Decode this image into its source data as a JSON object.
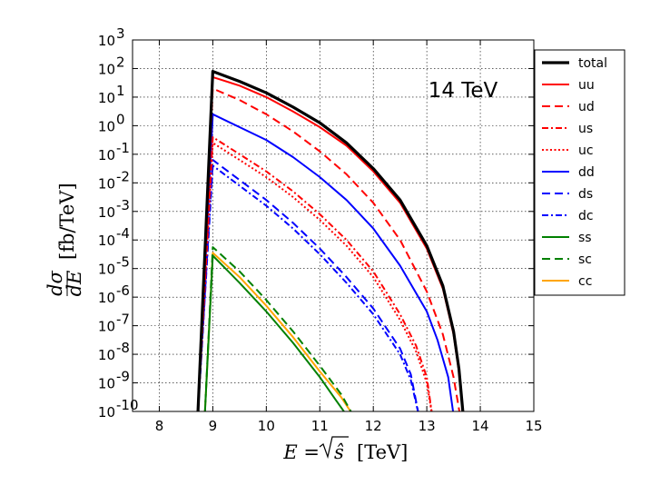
{
  "chart_data": {
    "type": "line",
    "title": "",
    "annotation": "14 TeV",
    "xlabel": {
      "prefix": "E = ",
      "sqrt_arg": "ŝ",
      "unit": "[TeV]"
    },
    "ylabel": {
      "frac_num": "dσ",
      "frac_den": "dE",
      "unit": "[fb/TeV]"
    },
    "xlim": [
      7.5,
      15
    ],
    "ylim_log10": [
      -10,
      3
    ],
    "xticks": [
      8,
      9,
      10,
      11,
      12,
      13,
      14,
      15
    ],
    "yticks_log10": [
      3,
      2,
      1,
      0,
      -1,
      -2,
      -3,
      -4,
      -5,
      -6,
      -7,
      -8,
      -9,
      -10
    ],
    "grid": true,
    "legend_position": "outside-right-top",
    "series": [
      {
        "name": "total",
        "color": "#000000",
        "dash": "solid",
        "width": 3.2,
        "x": [
          8.72,
          9.0,
          9.5,
          10.0,
          10.5,
          11.0,
          11.5,
          12.0,
          12.5,
          13.0,
          13.3,
          13.5,
          13.6,
          13.68
        ],
        "log10y": [
          -10,
          1.9,
          1.55,
          1.15,
          0.65,
          0.1,
          -0.6,
          -1.5,
          -2.6,
          -4.2,
          -5.6,
          -7.2,
          -8.5,
          -10
        ]
      },
      {
        "name": "uu",
        "color": "#ff0000",
        "dash": "solid",
        "width": 2,
        "x": [
          8.72,
          9.0,
          9.5,
          10.0,
          10.5,
          11.0,
          11.5,
          12.0,
          12.5,
          13.0,
          13.3,
          13.5,
          13.6,
          13.68
        ],
        "log10y": [
          -10,
          1.7,
          1.4,
          1.0,
          0.5,
          -0.05,
          -0.7,
          -1.6,
          -2.7,
          -4.3,
          -5.7,
          -7.3,
          -8.6,
          -10
        ]
      },
      {
        "name": "ud",
        "color": "#ff0000",
        "dash": "dashed",
        "width": 2,
        "x": [
          8.72,
          9.0,
          9.5,
          10.0,
          10.5,
          11.0,
          11.5,
          12.0,
          12.5,
          13.0,
          13.3,
          13.5,
          13.62
        ],
        "log10y": [
          -10,
          1.3,
          0.9,
          0.4,
          -0.2,
          -0.9,
          -1.7,
          -2.7,
          -4.0,
          -5.8,
          -7.3,
          -8.8,
          -10
        ]
      },
      {
        "name": "us",
        "color": "#ff0000",
        "dash": "dashdot",
        "width": 2,
        "x": [
          8.72,
          9.0,
          9.5,
          10.0,
          10.5,
          11.0,
          11.5,
          12.0,
          12.5,
          12.8,
          13.0,
          13.1
        ],
        "log10y": [
          -10,
          -0.4,
          -1.0,
          -1.6,
          -2.3,
          -3.1,
          -4.0,
          -5.1,
          -6.6,
          -7.7,
          -8.8,
          -10
        ]
      },
      {
        "name": "uc",
        "color": "#ff0000",
        "dash": "dotted",
        "width": 2,
        "x": [
          8.72,
          9.0,
          9.5,
          10.0,
          10.5,
          11.0,
          11.5,
          12.0,
          12.5,
          12.8,
          13.0,
          13.1
        ],
        "log10y": [
          -10,
          -0.6,
          -1.2,
          -1.8,
          -2.5,
          -3.3,
          -4.2,
          -5.3,
          -6.8,
          -7.9,
          -9.0,
          -10
        ]
      },
      {
        "name": "dd",
        "color": "#0000ff",
        "dash": "solid",
        "width": 2,
        "x": [
          8.72,
          9.0,
          9.5,
          10.0,
          10.5,
          11.0,
          11.5,
          12.0,
          12.5,
          13.0,
          13.2,
          13.4,
          13.5
        ],
        "log10y": [
          -10,
          0.4,
          -0.05,
          -0.5,
          -1.1,
          -1.8,
          -2.6,
          -3.6,
          -4.9,
          -6.5,
          -7.5,
          -8.8,
          -10
        ]
      },
      {
        "name": "ds",
        "color": "#0000ff",
        "dash": "dashed",
        "width": 2,
        "x": [
          8.72,
          9.0,
          9.5,
          10.0,
          10.5,
          11.0,
          11.5,
          12.0,
          12.5,
          12.7,
          12.85
        ],
        "log10y": [
          -10,
          -1.2,
          -1.9,
          -2.6,
          -3.4,
          -4.3,
          -5.3,
          -6.4,
          -7.8,
          -8.7,
          -10
        ]
      },
      {
        "name": "dc",
        "color": "#0000ff",
        "dash": "dashdot",
        "width": 2,
        "x": [
          8.72,
          9.0,
          9.5,
          10.0,
          10.5,
          11.0,
          11.5,
          12.0,
          12.5,
          12.7,
          12.85
        ],
        "log10y": [
          -10,
          -1.4,
          -2.1,
          -2.8,
          -3.6,
          -4.5,
          -5.5,
          -6.6,
          -8.0,
          -8.9,
          -10
        ]
      },
      {
        "name": "ss",
        "color": "#008000",
        "dash": "solid",
        "width": 2,
        "x": [
          8.85,
          9.0,
          9.5,
          10.0,
          10.5,
          11.0,
          11.3,
          11.5
        ],
        "log10y": [
          -10,
          -4.55,
          -5.5,
          -6.5,
          -7.6,
          -8.8,
          -9.6,
          -10
        ]
      },
      {
        "name": "sc",
        "color": "#008000",
        "dash": "dashed",
        "width": 2,
        "x": [
          8.85,
          9.0,
          9.5,
          10.0,
          10.5,
          11.0,
          11.4,
          11.62
        ],
        "log10y": [
          -10,
          -4.25,
          -5.1,
          -6.1,
          -7.2,
          -8.4,
          -9.4,
          -10
        ]
      },
      {
        "name": "cc",
        "color": "#ffa500",
        "dash": "solid",
        "width": 2,
        "x": [
          8.85,
          9.0,
          9.5,
          10.0,
          10.5,
          11.0,
          11.4,
          11.62
        ],
        "log10y": [
          -10,
          -4.45,
          -5.3,
          -6.3,
          -7.4,
          -8.6,
          -9.5,
          -10
        ]
      }
    ]
  }
}
